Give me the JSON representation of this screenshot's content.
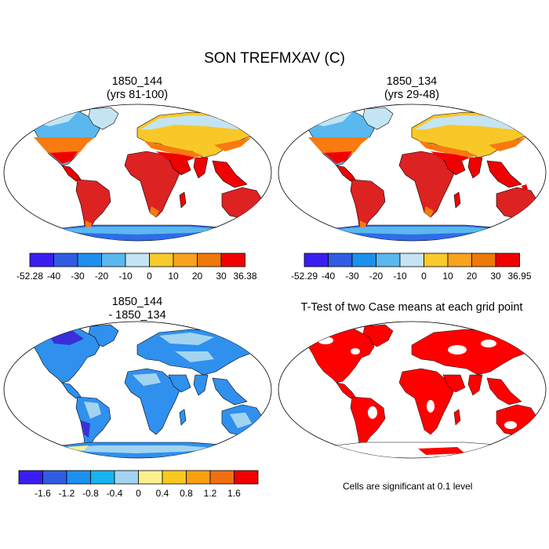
{
  "title": "SON TREFMXAV (C)",
  "panels": [
    {
      "id": "p1",
      "title_line1": "1850_144",
      "title_line2": "(yrs 81-100)"
    },
    {
      "id": "p2",
      "title_line1": "1850_134",
      "title_line2": "(yrs 29-48)"
    },
    {
      "id": "p3",
      "title_line1": "1850_144",
      "title_line2": "- 1850_134"
    },
    {
      "id": "p4",
      "title_line1": "T-Test of two Case means at each grid point",
      "title_line2": ""
    }
  ],
  "colorbars": [
    {
      "id": "cb1",
      "labels": [
        "-52.28",
        "-40",
        "-30",
        "-20",
        "-10",
        "0",
        "10",
        "20",
        "30",
        "36.38"
      ],
      "colors": [
        "#3a1ef0",
        "#2f5ce2",
        "#1d90ee",
        "#5ab8ee",
        "#c4e4f4",
        "#f8ca2c",
        "#f8a220",
        "#ee7808",
        "#f00000",
        "#c82828"
      ]
    },
    {
      "id": "cb2",
      "labels": [
        "-52.29",
        "-40",
        "-30",
        "-20",
        "-10",
        "0",
        "10",
        "20",
        "30",
        "36.95"
      ],
      "colors": [
        "#3a1ef0",
        "#2f5ce2",
        "#1d90ee",
        "#5ab8ee",
        "#c4e4f4",
        "#f8ca2c",
        "#f8a220",
        "#ee7808",
        "#f00000",
        "#c82828"
      ]
    },
    {
      "id": "cb3",
      "labels": [
        "-1.6",
        "-1.2",
        "-0.8",
        "-0.4",
        "0",
        "0.4",
        "0.8",
        "1.2",
        "1.6"
      ],
      "colors": [
        "#3a1ef0",
        "#2f5ce2",
        "#1d90ee",
        "#17b4f0",
        "#a2d4f0",
        "#fdf08c",
        "#f8c81e",
        "#f8a010",
        "#f07010",
        "#f00000",
        "#c82828"
      ]
    }
  ],
  "note": "Cells are significant at 0.1 level",
  "map_colors": {
    "ocean": "#ffffff",
    "tropical": "#dd2222",
    "hot": "#f00000",
    "warm": "#f87a10",
    "mild": "#f8c828",
    "cool": "#c4e4f4",
    "cold": "#5ab8ee",
    "ice": "#2f6ce8",
    "diff_base": "#2f90ee",
    "diff_light": "#a2d4f0",
    "diff_dark": "#3a2ed8",
    "significant": "#ff0000"
  }
}
